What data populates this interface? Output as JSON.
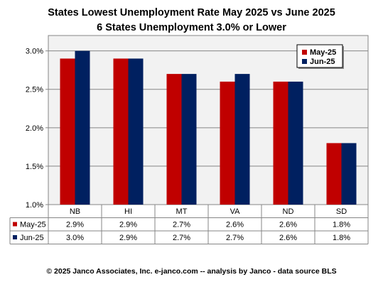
{
  "header": {
    "title": "States Lowest Unemployment Rate May 2025 vs June 2025",
    "subtitle": "6 States  Unemployment 3.0% or Lower"
  },
  "footer": {
    "credit": "© 2025 Janco Associates, Inc. e-janco.com -- analysis by Janco - data source BLS"
  },
  "chart_data": {
    "type": "bar",
    "title": "States Lowest Unemployment Rate May 2025 vs June 2025",
    "subtitle": "6 States  Unemployment 3.0% or Lower",
    "categories": [
      "NB",
      "HI",
      "MT",
      "VA",
      "ND",
      "SD"
    ],
    "series": [
      {
        "name": "May-25",
        "values": [
          2.9,
          2.9,
          2.7,
          2.6,
          2.6,
          1.8
        ],
        "labels": [
          "2.9%",
          "2.9%",
          "2.7%",
          "2.6%",
          "2.6%",
          "1.8%"
        ],
        "color": "#c00000"
      },
      {
        "name": "Jun-25",
        "values": [
          3.0,
          2.9,
          2.7,
          2.7,
          2.6,
          1.8
        ],
        "labels": [
          "3.0%",
          "2.9%",
          "2.7%",
          "2.7%",
          "2.6%",
          "1.8%"
        ],
        "color": "#002060"
      }
    ],
    "y_ticks": [
      "1.0%",
      "1.5%",
      "2.0%",
      "2.5%",
      "3.0%"
    ],
    "y_tick_values": [
      1.0,
      1.5,
      2.0,
      2.5,
      3.0
    ],
    "ylim": [
      1.0,
      3.2
    ],
    "xlabel": "",
    "ylabel": "",
    "grid": true,
    "legend_position": "top-right",
    "data_table": true,
    "plot_background": "#f2f2f2"
  }
}
